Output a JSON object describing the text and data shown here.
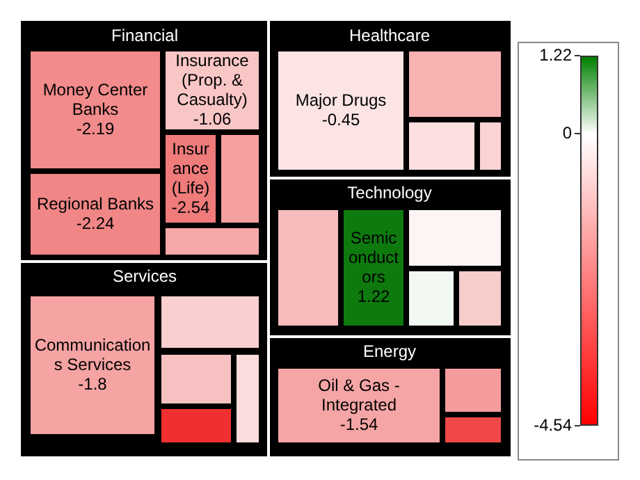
{
  "chart_data": {
    "type": "other",
    "annotations": [
      "Financial",
      "Healthcare",
      "Technology",
      "Services",
      "Energy",
      "1.22",
      "0",
      "-4.54"
    ],
    "categories": [
      "Money Center Banks",
      "Regional Banks",
      "Insurance (Prop. & Casualty)",
      "Insurance (Life)",
      null,
      null,
      "Major Drugs",
      null,
      null,
      null,
      null,
      "Semiconductors",
      null,
      null,
      null,
      "Communications Services",
      null,
      null,
      null,
      null,
      "Oil & Gas - Integrated",
      null,
      null
    ],
    "values": [
      -2.19,
      -2.24,
      -1.06,
      -2.54,
      null,
      null,
      -0.45,
      null,
      null,
      null,
      null,
      1.22,
      null,
      null,
      null,
      -1.8,
      null,
      null,
      null,
      null,
      -1.54,
      null,
      null
    ],
    "data_labels": true,
    "colors": [
      "#f28b8b",
      "#f08686",
      "#f9c6c6",
      "#ef7b7b",
      "#f5a0a0",
      "#f5a8a8",
      "#fce4e4",
      "#f7b2b2",
      "#fce0e0",
      "#fbd3d3",
      "#f8bcbc",
      "#0e7a0e",
      "#fdf4f4",
      "#f2f9f2",
      "#f9cccc",
      "#f5a3a3",
      "#f9cfcf",
      "#f8c2c2",
      "#f03030",
      "#fbdcdc",
      "#f5a5a5",
      "#f49c9c",
      "#f04848"
    ]
  }
}
